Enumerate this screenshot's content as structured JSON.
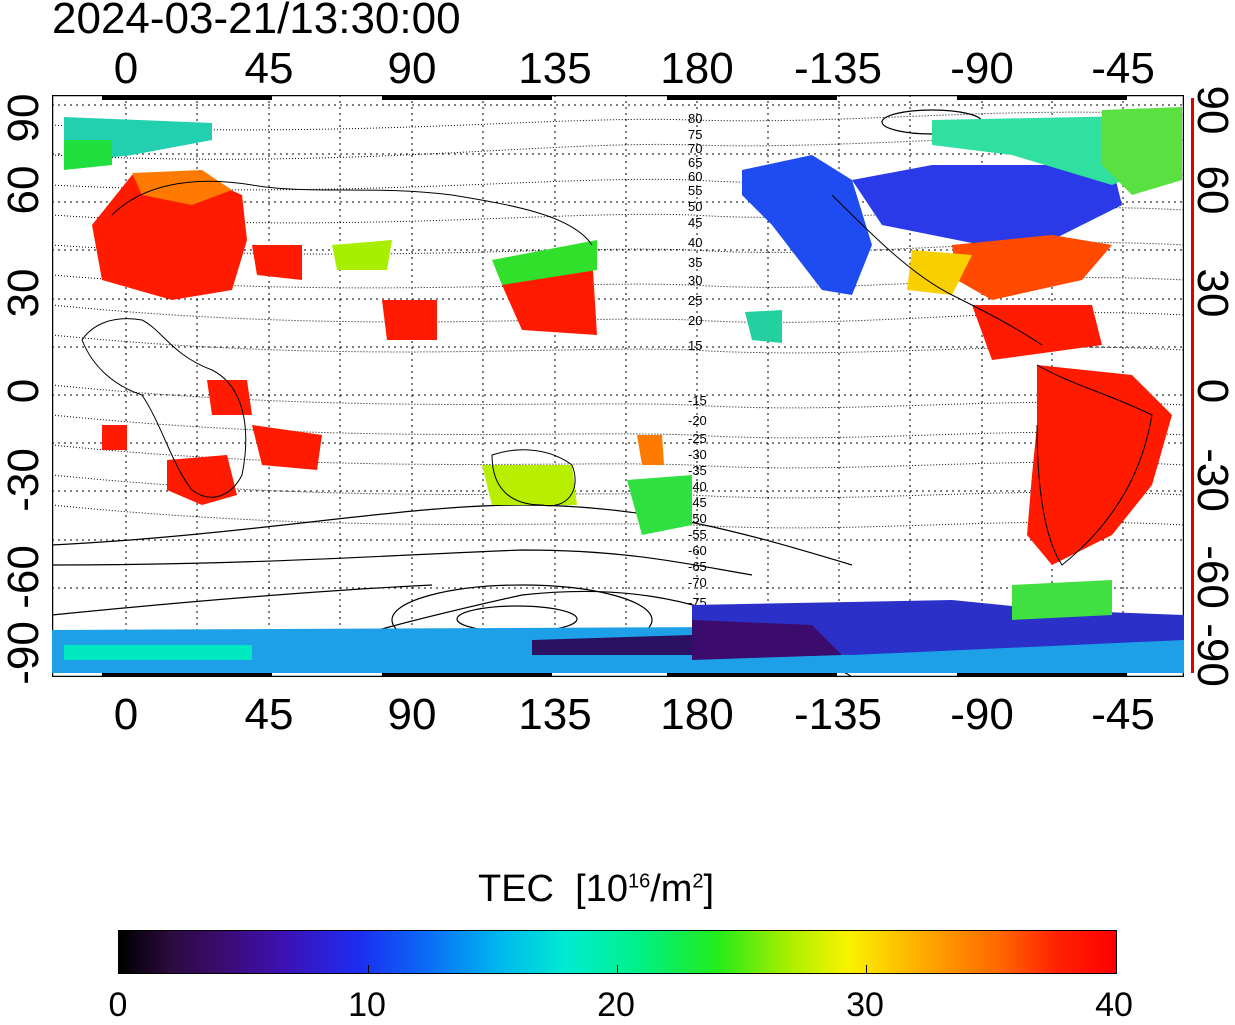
{
  "title": "2024-03-21/13:30:00",
  "lon_ticks": [
    "0",
    "45",
    "90",
    "135",
    "180",
    "-135",
    "-90",
    "-45"
  ],
  "lat_ticks_left": [
    "90",
    "60",
    "30",
    "0",
    "-30",
    "-60",
    "-90"
  ],
  "lat_ticks_right": [
    "90",
    "60",
    "30",
    "0",
    "-30",
    "-60",
    "-90"
  ],
  "contour_labels": [
    "80",
    "75",
    "70",
    "65",
    "60",
    "55",
    "50",
    "45",
    "40",
    "35",
    "30",
    "25",
    "20",
    "15",
    "-15",
    "-20",
    "-25",
    "-30",
    "-35",
    "-40",
    "-45",
    "-50",
    "-55",
    "-60",
    "-65",
    "-70",
    "-75"
  ],
  "colorbar": {
    "title": "TEC",
    "unit_base": "[10",
    "unit_exp": "16",
    "unit_mid": "/m",
    "unit_exp2": "2",
    "unit_end": "]",
    "labels": [
      "0",
      "10",
      "20",
      "30",
      "40"
    ],
    "min": 0,
    "max": 40
  },
  "colors": {
    "low": "#000000",
    "mid_low": "#1d2df0",
    "mid": "#00ecd0",
    "mid_high": "#f8f400",
    "high": "#ff0000",
    "accent": "#e00000"
  }
}
